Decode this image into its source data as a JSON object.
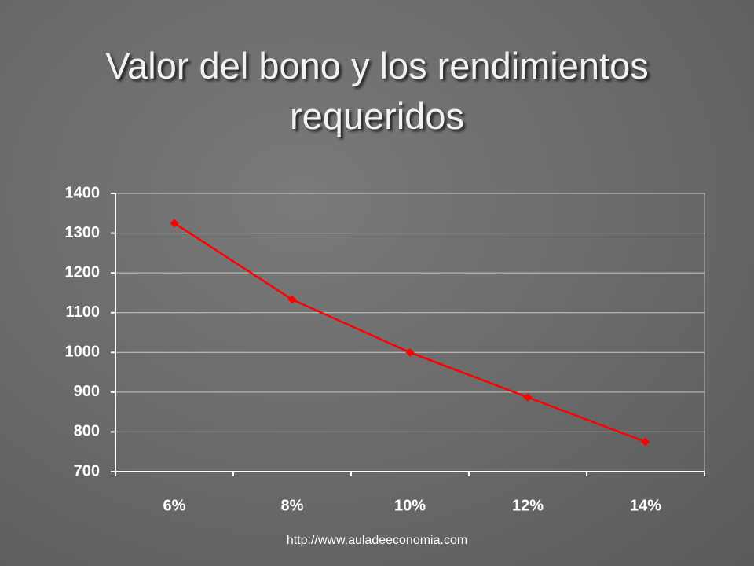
{
  "chart_data": {
    "type": "line",
    "title": "Valor del bono y los rendimientos requeridos",
    "categories": [
      "6%",
      "8%",
      "10%",
      "12%",
      "14%"
    ],
    "series": [
      {
        "color": "#ff0000",
        "values": [
          1325,
          1133,
          1000,
          887,
          775
        ]
      }
    ],
    "ylim": [
      700,
      1400
    ],
    "yticks": [
      700,
      800,
      900,
      1000,
      1100,
      1200,
      1300,
      1400
    ],
    "grid": true
  },
  "footer": "http://www.auladeeconomia.com"
}
